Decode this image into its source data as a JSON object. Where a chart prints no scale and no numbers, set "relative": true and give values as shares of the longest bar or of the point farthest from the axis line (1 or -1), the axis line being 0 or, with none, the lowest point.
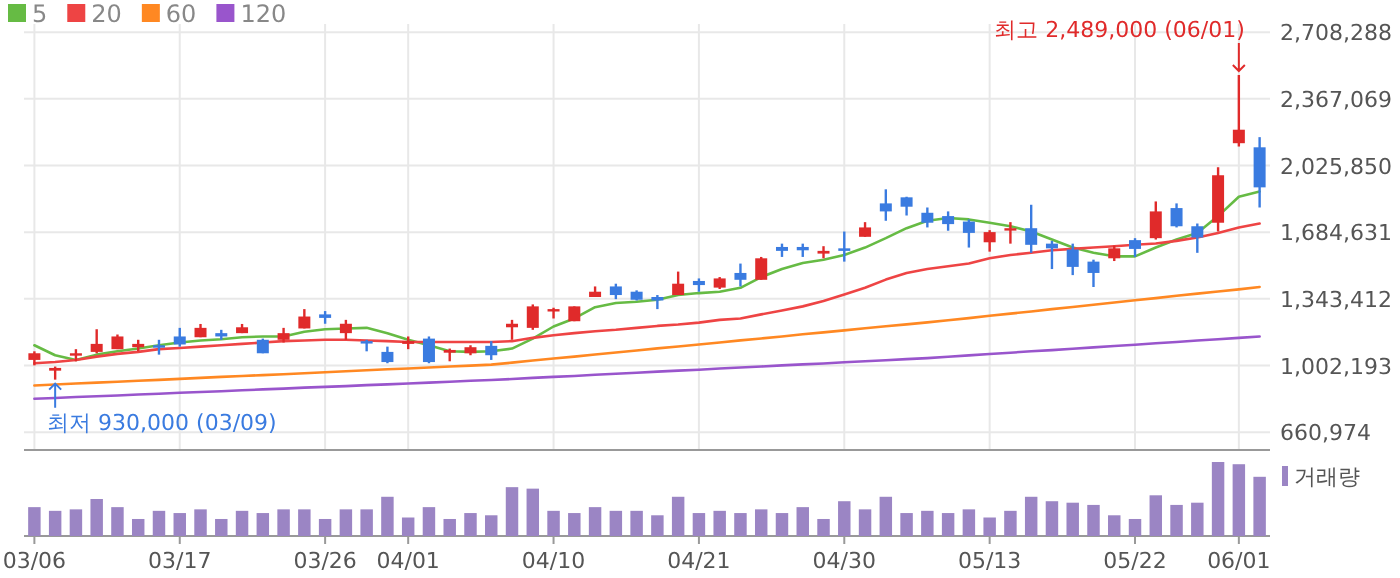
{
  "chart_data": [
    {
      "type": "candlestick",
      "grid": true,
      "legend": "top left",
      "tick_labels": "y",
      "categories": [
        "03/06",
        null,
        null,
        null,
        null,
        null,
        null,
        "03/17",
        null,
        null,
        null,
        null,
        null,
        null,
        "03/26",
        null,
        null,
        null,
        "04/01",
        null,
        null,
        null,
        null,
        null,
        null,
        "04/10",
        null,
        null,
        null,
        null,
        null,
        null,
        "04/21",
        null,
        null,
        null,
        null,
        null,
        null,
        "04/30",
        null,
        null,
        null,
        null,
        null,
        null,
        "05/13",
        null,
        null,
        null,
        null,
        null,
        null,
        "05/22",
        null,
        null,
        null,
        null,
        "06/01",
        null
      ],
      "ylim": [
        570000,
        2750000
      ],
      "yticks": [
        {
          "value": 660974,
          "label": "660,974"
        },
        {
          "value": 1002193,
          "label": "1,002,193"
        },
        {
          "value": 1343412,
          "label": "1,343,412"
        },
        {
          "value": 1684631,
          "label": "1,684,631"
        },
        {
          "value": 2025850,
          "label": "2,025,850"
        },
        {
          "value": 2367069,
          "label": "2,367,069"
        },
        {
          "value": 2708288,
          "label": "2,708,288"
        }
      ],
      "ohlc": [
        [
          1031000,
          1075000,
          1003000,
          1065000
        ],
        [
          976000,
          997000,
          930000,
          990000
        ],
        [
          1055000,
          1086000,
          1024000,
          1065000
        ],
        [
          1072000,
          1188000,
          1065000,
          1113000
        ],
        [
          1086000,
          1161000,
          1086000,
          1151000
        ],
        [
          1096000,
          1134000,
          1075000,
          1113000
        ],
        [
          1106000,
          1134000,
          1058000,
          1096000
        ],
        [
          1151000,
          1195000,
          1099000,
          1110000
        ],
        [
          1147000,
          1215000,
          1147000,
          1195000
        ],
        [
          1168000,
          1185000,
          1134000,
          1151000
        ],
        [
          1168000,
          1215000,
          1168000,
          1198000
        ],
        [
          1134000,
          1140000,
          1065000,
          1065000
        ],
        [
          1134000,
          1195000,
          1120000,
          1168000
        ],
        [
          1192000,
          1291000,
          1192000,
          1253000
        ],
        [
          1264000,
          1281000,
          1216000,
          1246000
        ],
        [
          1168000,
          1236000,
          1134000,
          1216000
        ],
        [
          1127000,
          1134000,
          1075000,
          1116000
        ],
        [
          1072000,
          1099000,
          1014000,
          1020000
        ],
        [
          1113000,
          1151000,
          1086000,
          1127000
        ],
        [
          1140000,
          1151000,
          1014000,
          1020000
        ],
        [
          1068000,
          1089000,
          1024000,
          1082000
        ],
        [
          1065000,
          1106000,
          1055000,
          1096000
        ],
        [
          1103000,
          1127000,
          1031000,
          1055000
        ],
        [
          1198000,
          1236000,
          1134000,
          1216000
        ],
        [
          1195000,
          1315000,
          1185000,
          1305000
        ],
        [
          1281000,
          1298000,
          1243000,
          1291000
        ],
        [
          1229000,
          1305000,
          1229000,
          1305000
        ],
        [
          1353000,
          1407000,
          1353000,
          1380000
        ],
        [
          1407000,
          1421000,
          1342000,
          1363000
        ],
        [
          1380000,
          1387000,
          1335000,
          1339000
        ],
        [
          1353000,
          1363000,
          1291000,
          1335000
        ],
        [
          1363000,
          1483000,
          1363000,
          1421000
        ],
        [
          1435000,
          1448000,
          1380000,
          1414000
        ],
        [
          1401000,
          1455000,
          1394000,
          1448000
        ],
        [
          1476000,
          1524000,
          1407000,
          1441000
        ],
        [
          1441000,
          1558000,
          1441000,
          1551000
        ],
        [
          1609000,
          1626000,
          1558000,
          1589000
        ],
        [
          1609000,
          1626000,
          1558000,
          1592000
        ],
        [
          1575000,
          1613000,
          1551000,
          1589000
        ],
        [
          1602000,
          1688000,
          1534000,
          1589000
        ],
        [
          1661000,
          1736000,
          1661000,
          1709000
        ],
        [
          1832000,
          1904000,
          1743000,
          1791000
        ],
        [
          1863000,
          1866000,
          1770000,
          1815000
        ],
        [
          1784000,
          1811000,
          1709000,
          1733000
        ],
        [
          1767000,
          1791000,
          1692000,
          1726000
        ],
        [
          1739000,
          1750000,
          1606000,
          1681000
        ],
        [
          1633000,
          1695000,
          1585000,
          1685000
        ],
        [
          1695000,
          1736000,
          1626000,
          1705000
        ],
        [
          1705000,
          1825000,
          1579000,
          1620000
        ],
        [
          1626000,
          1640000,
          1496000,
          1602000
        ],
        [
          1596000,
          1626000,
          1465000,
          1507000
        ],
        [
          1534000,
          1544000,
          1404000,
          1476000
        ],
        [
          1551000,
          1616000,
          1537000,
          1602000
        ],
        [
          1644000,
          1654000,
          1558000,
          1599000
        ],
        [
          1654000,
          1842000,
          1647000,
          1791000
        ],
        [
          1808000,
          1832000,
          1709000,
          1715000
        ],
        [
          1715000,
          1729000,
          1579000,
          1657000
        ],
        [
          1733000,
          2017000,
          1688000,
          1976000
        ],
        [
          2140000,
          2489000,
          2123000,
          2209000
        ],
        [
          2119000,
          2171000,
          1811000,
          1914000
        ]
      ],
      "colors": [
        "#e02a2a",
        "#e02a2a",
        "#e02a2a",
        "#e02a2a",
        "#e02a2a",
        "#e02a2a",
        "#3a7be0",
        "#3a7be0",
        "#e02a2a",
        "#3a7be0",
        "#e02a2a",
        "#3a7be0",
        "#e02a2a",
        "#e02a2a",
        "#3a7be0",
        "#e02a2a",
        "#3a7be0",
        "#3a7be0",
        "#e02a2a",
        "#3a7be0",
        "#e02a2a",
        "#e02a2a",
        "#3a7be0",
        "#e02a2a",
        "#e02a2a",
        "#e02a2a",
        "#e02a2a",
        "#e02a2a",
        "#3a7be0",
        "#3a7be0",
        "#3a7be0",
        "#e02a2a",
        "#3a7be0",
        "#e02a2a",
        "#3a7be0",
        "#e02a2a",
        "#3a7be0",
        "#3a7be0",
        "#e02a2a",
        "#3a7be0",
        "#e02a2a",
        "#3a7be0",
        "#3a7be0",
        "#3a7be0",
        "#3a7be0",
        "#3a7be0",
        "#e02a2a",
        "#e02a2a",
        "#3a7be0",
        "#3a7be0",
        "#3a7be0",
        "#3a7be0",
        "#e02a2a",
        "#3a7be0",
        "#e02a2a",
        "#3a7be0",
        "#3a7be0",
        "#e02a2a",
        "#e02a2a",
        "#3a7be0"
      ],
      "series": [
        {
          "name": "5",
          "type": "line",
          "color": "#66bb44",
          "values": [
            1106000,
            1055000,
            1031000,
            1058000,
            1075000,
            1089000,
            1106000,
            1120000,
            1130000,
            1137000,
            1147000,
            1151000,
            1151000,
            1175000,
            1188000,
            1192000,
            1195000,
            1168000,
            1134000,
            1106000,
            1075000,
            1072000,
            1075000,
            1089000,
            1140000,
            1202000,
            1243000,
            1301000,
            1322000,
            1329000,
            1339000,
            1363000,
            1373000,
            1380000,
            1400000,
            1455000,
            1496000,
            1527000,
            1544000,
            1568000,
            1606000,
            1654000,
            1705000,
            1743000,
            1757000,
            1750000,
            1733000,
            1715000,
            1688000,
            1647000,
            1606000,
            1579000,
            1561000,
            1561000,
            1606000,
            1647000,
            1681000,
            1767000,
            1866000,
            1893000
          ]
        },
        {
          "name": "20",
          "type": "line",
          "color": "#ee4444",
          "values": [
            1014000,
            1020000,
            1031000,
            1048000,
            1062000,
            1072000,
            1086000,
            1092000,
            1099000,
            1106000,
            1113000,
            1120000,
            1127000,
            1130000,
            1134000,
            1134000,
            1130000,
            1127000,
            1123000,
            1123000,
            1123000,
            1123000,
            1123000,
            1127000,
            1144000,
            1157000,
            1168000,
            1178000,
            1185000,
            1195000,
            1205000,
            1212000,
            1222000,
            1236000,
            1243000,
            1264000,
            1284000,
            1305000,
            1332000,
            1366000,
            1400000,
            1442000,
            1476000,
            1496000,
            1510000,
            1524000,
            1551000,
            1568000,
            1579000,
            1592000,
            1599000,
            1606000,
            1613000,
            1620000,
            1627000,
            1640000,
            1657000,
            1681000,
            1709000,
            1729000
          ]
        },
        {
          "name": "60",
          "type": "line",
          "color": "#ff8822",
          "values": [
            900000,
            905000,
            910000,
            915000,
            919000,
            924000,
            929000,
            934000,
            939000,
            944000,
            949000,
            953000,
            958000,
            963000,
            968000,
            973000,
            978000,
            983000,
            987000,
            992000,
            997000,
            1002000,
            1007000,
            1017000,
            1028000,
            1038000,
            1048000,
            1059000,
            1069000,
            1079000,
            1090000,
            1100000,
            1110000,
            1120000,
            1131000,
            1141000,
            1151000,
            1162000,
            1172000,
            1182000,
            1193000,
            1203000,
            1213000,
            1223000,
            1234000,
            1245000,
            1257000,
            1268000,
            1279000,
            1291000,
            1302000,
            1313000,
            1325000,
            1336000,
            1347000,
            1359000,
            1370000,
            1381000,
            1392000,
            1404000
          ]
        },
        {
          "name": "120",
          "type": "line",
          "color": "#9955cc",
          "values": [
            832000,
            836000,
            841000,
            845000,
            849000,
            854000,
            858000,
            863000,
            867000,
            871000,
            876000,
            880000,
            884000,
            889000,
            893000,
            897000,
            902000,
            906000,
            910000,
            915000,
            919000,
            924000,
            928000,
            933000,
            939000,
            944000,
            949000,
            955000,
            960000,
            965000,
            971000,
            976000,
            981000,
            987000,
            992000,
            997000,
            1003000,
            1008000,
            1013000,
            1019000,
            1024000,
            1029000,
            1035000,
            1040000,
            1047000,
            1054000,
            1061000,
            1068000,
            1075000,
            1081000,
            1088000,
            1095000,
            1102000,
            1109000,
            1116000,
            1123000,
            1130000,
            1137000,
            1144000,
            1151000
          ]
        }
      ],
      "annotations": [
        {
          "text": "최고 2,489,000 (06/01)",
          "x": "06/01",
          "y": 2489000
        },
        {
          "text": "최저 930,000 (03/09)",
          "y": 930000
        }
      ]
    },
    {
      "type": "bar",
      "relative": true,
      "legend": "right",
      "tick_labels": "x",
      "categories": [
        "03/06",
        null,
        null,
        null,
        null,
        null,
        null,
        "03/17",
        null,
        null,
        null,
        null,
        null,
        null,
        "03/26",
        null,
        null,
        null,
        "04/01",
        null,
        null,
        null,
        null,
        null,
        null,
        "04/10",
        null,
        null,
        null,
        null,
        null,
        null,
        "04/21",
        null,
        null,
        null,
        null,
        null,
        null,
        "04/30",
        null,
        null,
        null,
        null,
        null,
        null,
        "05/13",
        null,
        null,
        null,
        null,
        null,
        null,
        "05/22",
        null,
        null,
        null,
        null,
        "06/01",
        null
      ],
      "series": [
        {
          "name": "거래량",
          "color": "#9b85c4",
          "values": [
            0.39,
            0.34,
            0.36,
            0.5,
            0.39,
            0.23,
            0.34,
            0.31,
            0.36,
            0.23,
            0.34,
            0.31,
            0.36,
            0.36,
            0.23,
            0.36,
            0.36,
            0.53,
            0.25,
            0.39,
            0.23,
            0.31,
            0.28,
            0.66,
            0.64,
            0.34,
            0.31,
            0.39,
            0.34,
            0.34,
            0.28,
            0.53,
            0.31,
            0.34,
            0.31,
            0.36,
            0.31,
            0.39,
            0.23,
            0.47,
            0.36,
            0.53,
            0.31,
            0.34,
            0.31,
            0.36,
            0.25,
            0.34,
            0.53,
            0.47,
            0.45,
            0.42,
            0.28,
            0.23,
            0.55,
            0.42,
            0.45,
            1,
            0.97,
            0.8
          ]
        }
      ]
    }
  ]
}
